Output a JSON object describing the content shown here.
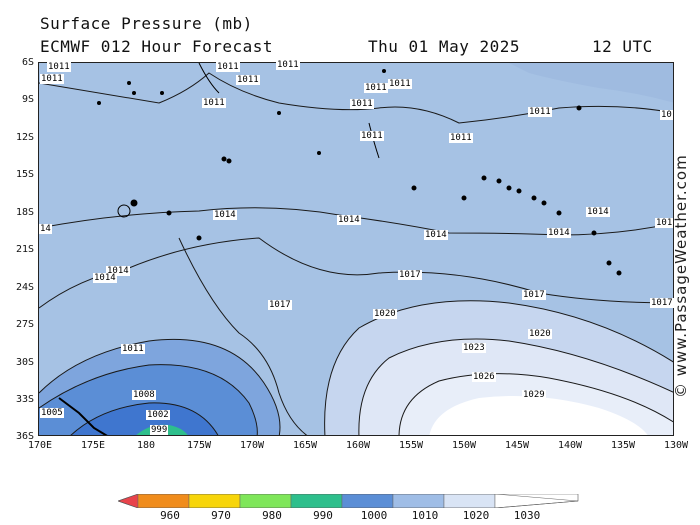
{
  "header": {
    "title": "Surface Pressure (mb)",
    "subtitle": "ECMWF 012 Hour Forecast",
    "valid_date": "Thu 01 May 2025",
    "valid_time": "12 UTC"
  },
  "credit": "© www.PassageWeather.com",
  "lat_labels": [
    "6S",
    "9S",
    "12S",
    "15S",
    "18S",
    "21S",
    "24S",
    "27S",
    "30S",
    "33S",
    "36S"
  ],
  "lon_labels": [
    "170E",
    "175E",
    "180",
    "175W",
    "170W",
    "165W",
    "160W",
    "155W",
    "150W",
    "145W",
    "140W",
    "135W",
    "130W"
  ],
  "isobar_labels": [
    {
      "text": "1011"
    },
    {
      "text": "1011"
    },
    {
      "text": "1011"
    },
    {
      "text": "1011"
    },
    {
      "text": "1011"
    },
    {
      "text": "1011"
    },
    {
      "text": "1011"
    },
    {
      "text": "1011"
    },
    {
      "text": "1011"
    },
    {
      "text": "1011"
    },
    {
      "text": "1011"
    },
    {
      "text": "1011"
    },
    {
      "text": "10"
    },
    {
      "text": "1014"
    },
    {
      "text": "1014"
    },
    {
      "text": "1014"
    },
    {
      "text": "1014"
    },
    {
      "text": "1014"
    },
    {
      "text": "14"
    },
    {
      "text": "1014"
    },
    {
      "text": "1014"
    },
    {
      "text": "101"
    },
    {
      "text": "1017"
    },
    {
      "text": "1017"
    },
    {
      "text": "1017"
    },
    {
      "text": "1017"
    },
    {
      "text": "1020"
    },
    {
      "text": "1020"
    },
    {
      "text": "1023"
    },
    {
      "text": "1026"
    },
    {
      "text": "1029"
    },
    {
      "text": "1011"
    },
    {
      "text": "1008"
    },
    {
      "text": "1005"
    },
    {
      "text": "1002"
    },
    {
      "text": "999"
    }
  ],
  "legend": {
    "labels": [
      "960",
      "970",
      "980",
      "990",
      "1000",
      "1010",
      "1020",
      "1030"
    ],
    "colors": [
      "#e8434b",
      "#f08c1c",
      "#f7d50a",
      "#7fe65a",
      "#2ebf8c",
      "#5b8ed6",
      "#9fbde6",
      "#d9e4f5",
      "#ffffff"
    ]
  },
  "colors": {
    "band_1010": "#a6c2e4",
    "band_1020": "#c6d6ef",
    "band_1023": "#dfe7f6",
    "band_1030": "#ffffff",
    "band_1005": "#5b8ed6",
    "band_low": "#3f76cf",
    "band_lower": "#2ebf8c",
    "coast": "#000000",
    "isobar": "#1a1a1a"
  }
}
